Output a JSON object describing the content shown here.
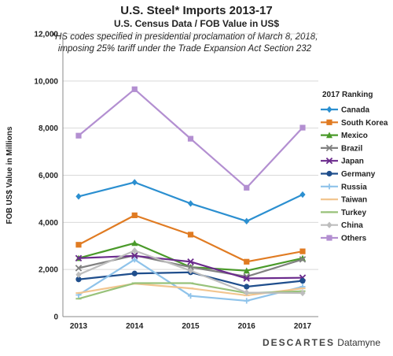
{
  "chart_data": {
    "type": "line",
    "title": "U.S. Steel* Imports 2013-17",
    "subtitle": "U.S. Census Data / FOB Value in US$",
    "note": "*HS codes specified in presidential proclamation of March 8, 2018, imposing 25% tariff under the Trade Expansion Act Section 232",
    "ylabel": "FOB US$ Value in Millions",
    "xlabel": "",
    "x": [
      "2013",
      "2014",
      "2015",
      "2016",
      "2017"
    ],
    "ylim": [
      0,
      12000
    ],
    "y_ticks": [
      "0",
      "2,000",
      "4,000",
      "6,000",
      "8,000",
      "10,000",
      "12,000"
    ],
    "grid": "horizontal",
    "legend_title": "2017 Ranking",
    "legend_position": "right",
    "series": [
      {
        "name": "Canada",
        "color": "#2b8fd0",
        "marker": "diamond",
        "values": [
          5100,
          5700,
          4800,
          4050,
          5180
        ]
      },
      {
        "name": "South Korea",
        "color": "#e07b22",
        "marker": "square",
        "values": [
          3050,
          4300,
          3480,
          2330,
          2770
        ]
      },
      {
        "name": "Mexico",
        "color": "#4a9a2a",
        "marker": "triangle",
        "values": [
          2480,
          3120,
          2100,
          1950,
          2480
        ]
      },
      {
        "name": "Brazil",
        "color": "#808080",
        "marker": "x",
        "values": [
          2060,
          2600,
          2100,
          1700,
          2430
        ]
      },
      {
        "name": "Japan",
        "color": "#6a2a8c",
        "marker": "x",
        "values": [
          2480,
          2580,
          2330,
          1620,
          1650
        ]
      },
      {
        "name": "Germany",
        "color": "#1f4e8c",
        "marker": "circle",
        "values": [
          1580,
          1830,
          1880,
          1270,
          1520
        ]
      },
      {
        "name": "Russia",
        "color": "#8fc3ea",
        "marker": "plus",
        "values": [
          920,
          2420,
          880,
          670,
          1270
        ]
      },
      {
        "name": "Taiwan",
        "color": "#f2c58f",
        "marker": "dash",
        "values": [
          1000,
          1400,
          1200,
          900,
          1200
        ]
      },
      {
        "name": "Turkey",
        "color": "#98c27a",
        "marker": "dash",
        "values": [
          760,
          1420,
          1420,
          1000,
          1080
        ]
      },
      {
        "name": "China",
        "color": "#bdbdbd",
        "marker": "diamond",
        "values": [
          1780,
          2800,
          1950,
          1020,
          1000
        ]
      },
      {
        "name": "Others",
        "color": "#b38fd1",
        "marker": "square",
        "values": [
          7680,
          9650,
          7550,
          5470,
          8020
        ]
      }
    ]
  },
  "brand": {
    "part1": "DESCARTES",
    "part2": "Datamyne"
  }
}
